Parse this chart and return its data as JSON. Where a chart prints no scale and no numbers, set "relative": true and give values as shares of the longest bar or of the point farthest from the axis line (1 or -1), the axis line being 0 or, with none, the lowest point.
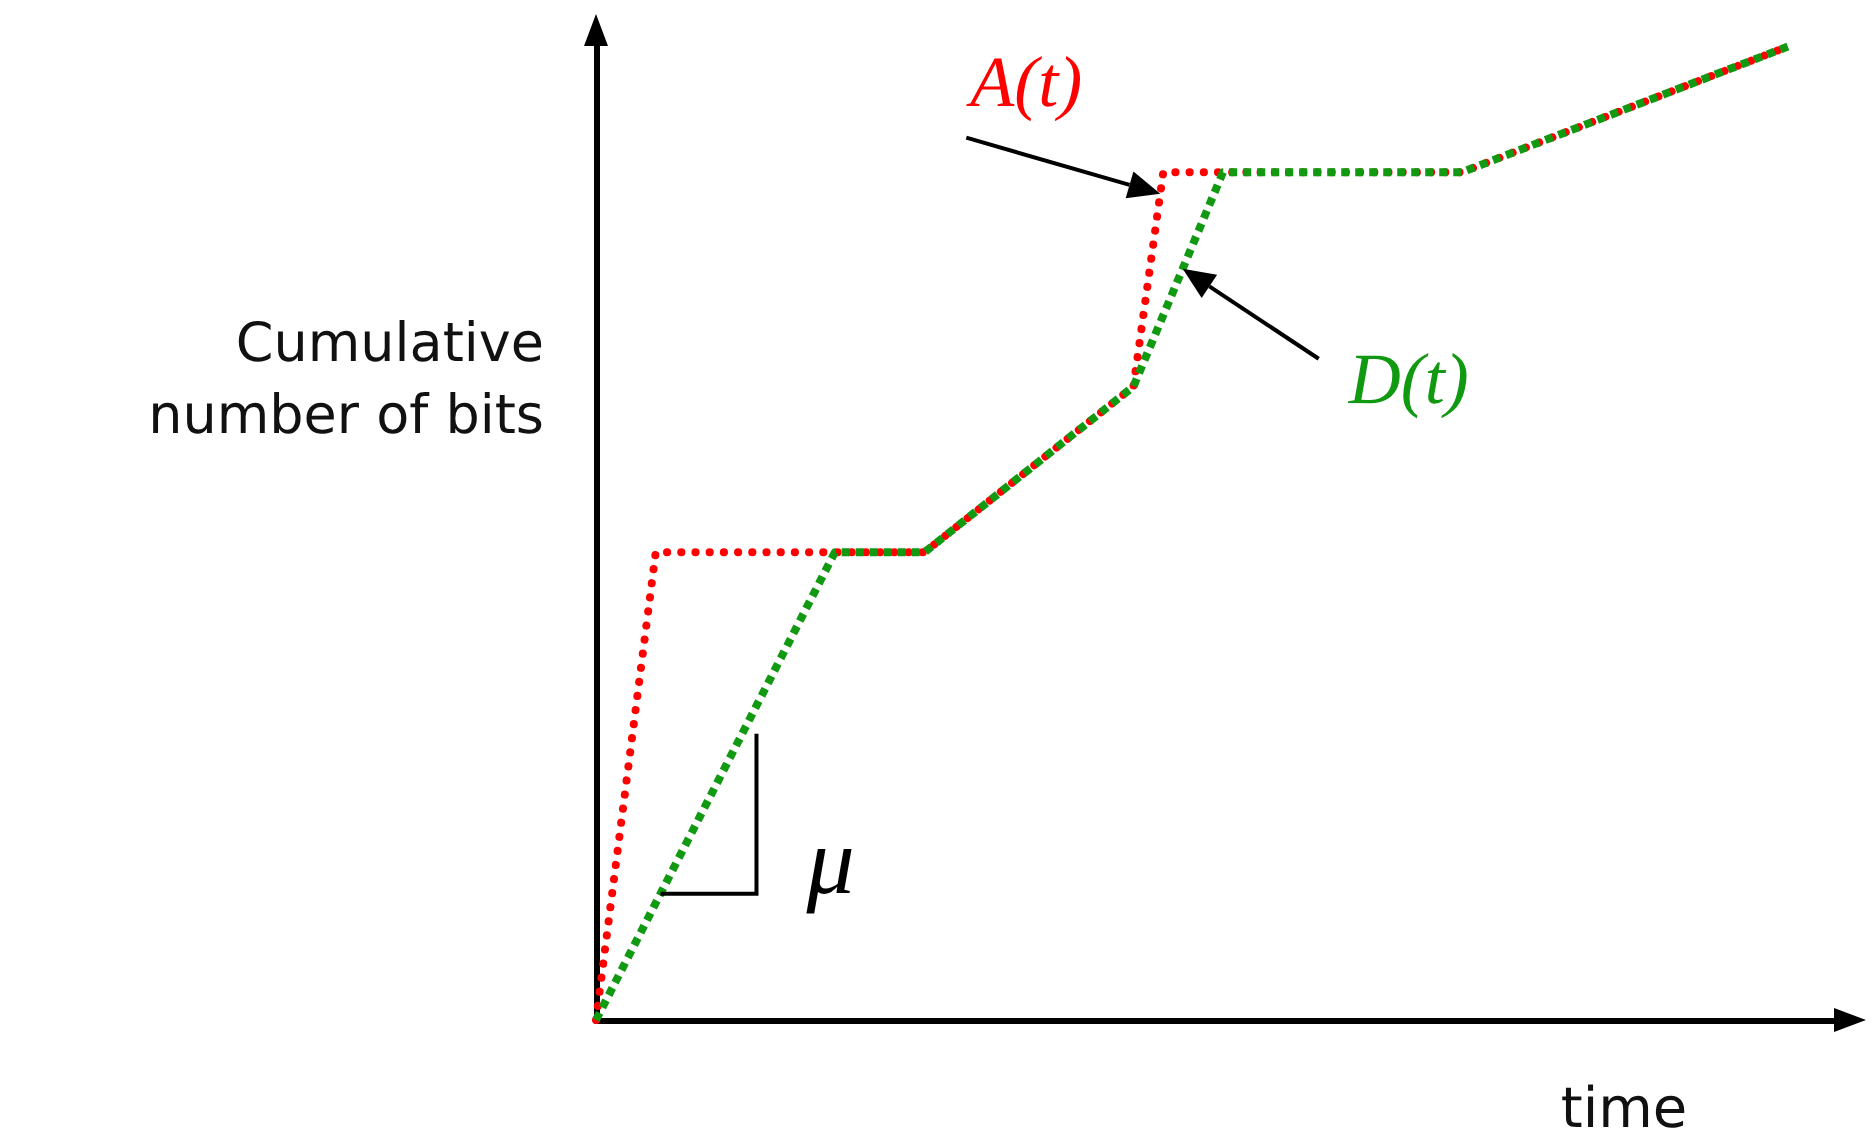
{
  "chart_data": {
    "type": "line",
    "relative": true,
    "xlabel": "time",
    "ylabel": "Cumulative\nnumber of bits",
    "grid": false,
    "legend": false,
    "marker": "none",
    "categories": [
      null,
      null,
      null,
      null,
      null,
      null,
      null,
      null,
      null,
      null,
      null,
      null,
      null,
      null,
      null,
      null,
      null,
      null,
      null,
      null,
      null,
      null,
      null,
      null,
      null,
      null,
      null,
      null,
      null,
      null,
      null,
      null,
      null,
      null,
      null,
      null,
      null,
      null,
      null,
      null,
      null,
      null,
      null
    ],
    "annotations": [
      "μ"
    ],
    "series": [
      {
        "name": "A(t)",
        "color": "#ff0000",
        "line_style": "dotted",
        "values": [
          0,
          null,
          0.48,
          null,
          null,
          null,
          null,
          null,
          null,
          null,
          null,
          0.48,
          null,
          null,
          null,
          null,
          null,
          null,
          0.65,
          0.87,
          null,
          null,
          null,
          null,
          null,
          null,
          null,
          null,
          null,
          0.87,
          null,
          null,
          null,
          null,
          null,
          null,
          null,
          null,
          null,
          null,
          1,
          null,
          null
        ]
      },
      {
        "name": "D(t)",
        "color": "#119911",
        "line_style": "dashed",
        "values": [
          0,
          null,
          null,
          null,
          null,
          null,
          null,
          null,
          0.48,
          null,
          null,
          0.48,
          null,
          null,
          null,
          null,
          null,
          null,
          0.65,
          null,
          null,
          0.87,
          null,
          null,
          null,
          null,
          null,
          null,
          null,
          0.87,
          null,
          null,
          null,
          null,
          null,
          null,
          null,
          null,
          null,
          null,
          1,
          null,
          null
        ]
      }
    ]
  }
}
